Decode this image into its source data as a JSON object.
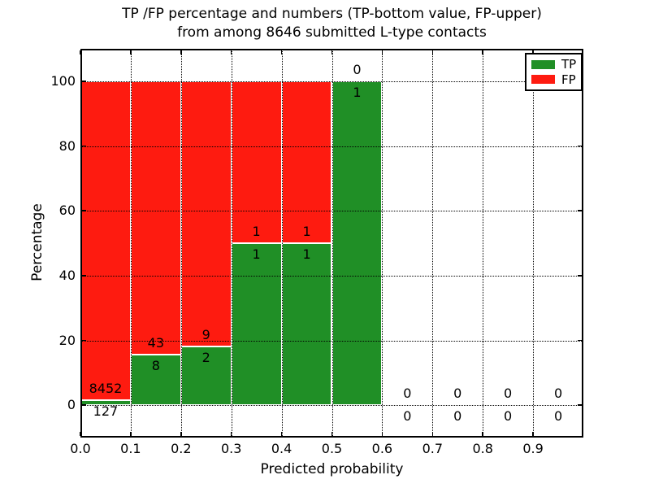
{
  "title": {
    "line1": "TP /FP percentage and numbers (TP-bottom value, FP-upper)",
    "line2": "from among 8646 submitted L-type contacts"
  },
  "axes": {
    "xlabel": "Predicted probability",
    "ylabel": "Percentage"
  },
  "legend": {
    "items": [
      {
        "label": "TP",
        "color": "#208f26"
      },
      {
        "label": "FP",
        "color": "#fe1b10"
      }
    ]
  },
  "chart_data": {
    "type": "bar",
    "stacking": "percentage-stacked",
    "title": "TP /FP percentage and numbers (TP-bottom value, FP-upper) from among 8646 submitted L-type contacts",
    "xlabel": "Predicted probability",
    "ylabel": "Percentage",
    "xlim": [
      0.0,
      1.0
    ],
    "ylim": [
      -10,
      110
    ],
    "x_ticks": [
      0.0,
      0.1,
      0.2,
      0.3,
      0.4,
      0.5,
      0.6,
      0.7,
      0.8,
      0.9
    ],
    "x_tick_labels": [
      "0.0",
      "0.1",
      "0.2",
      "0.3",
      "0.4",
      "0.5",
      "0.6",
      "0.7",
      "0.8",
      "0.9"
    ],
    "y_ticks": [
      0,
      20,
      40,
      60,
      80,
      100
    ],
    "y_tick_labels": [
      "0",
      "20",
      "40",
      "60",
      "80",
      "100"
    ],
    "grid": "dotted, drawn above bars",
    "legend_position": "upper right",
    "bin_width": 0.1,
    "categories": [
      "0.0-0.1",
      "0.1-0.2",
      "0.2-0.3",
      "0.3-0.4",
      "0.4-0.5",
      "0.5-0.6",
      "0.6-0.7",
      "0.7-0.8",
      "0.8-0.9",
      "0.9-1.0"
    ],
    "series": [
      {
        "name": "TP",
        "color": "#208f26",
        "values": [
          127,
          8,
          2,
          1,
          1,
          1,
          0,
          0,
          0,
          0
        ]
      },
      {
        "name": "FP",
        "color": "#fe1b10",
        "values": [
          8452,
          43,
          9,
          1,
          1,
          0,
          0,
          0,
          0,
          0
        ]
      }
    ],
    "tp_percent_per_bin": [
      1.48,
      15.69,
      18.18,
      50.0,
      50.0,
      100.0,
      null,
      null,
      null,
      null
    ],
    "total_submitted": 8646,
    "annotation_note": "FP count printed above TP/FP boundary, TP count below it, for every bin"
  }
}
